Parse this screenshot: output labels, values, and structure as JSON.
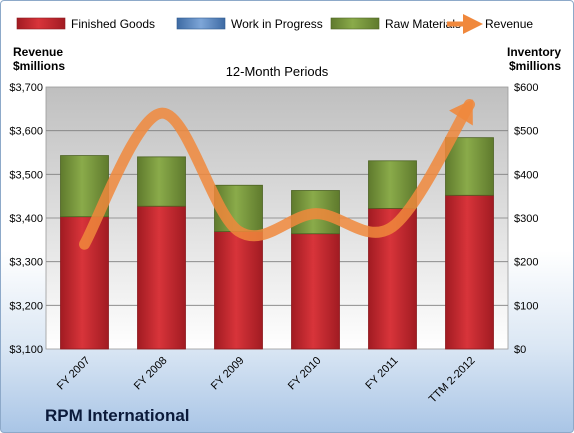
{
  "chart_data": {
    "type": "bar",
    "stacked": true,
    "title": "12-Month Periods",
    "company": "RPM International",
    "categories": [
      "FY 2007",
      "FY 2008",
      "FY 2009",
      "FY 2010",
      "FY 2011",
      "TTM 2-2012"
    ],
    "series": [
      {
        "name": "Finished Goods",
        "axis": "right",
        "color": "#c0262c",
        "values": [
          303,
          327,
          269,
          264,
          322,
          352
        ]
      },
      {
        "name": "Work in Progress",
        "axis": "right",
        "color": "#4f81bd",
        "values": [
          0,
          0,
          0,
          0,
          0,
          0
        ]
      },
      {
        "name": "Raw Materials",
        "axis": "right",
        "color": "#77933c",
        "values": [
          140,
          113,
          106,
          99,
          109,
          132
        ]
      },
      {
        "name": "Revenue",
        "axis": "left",
        "type": "line",
        "color": "#f0883c",
        "values": [
          3340,
          3640,
          3370,
          3410,
          3380,
          3660
        ]
      }
    ],
    "ylabel_left": "Revenue $millions",
    "ylabel_left_lines": [
      "Revenue",
      "$millions"
    ],
    "ylabel_right": "Inventory $millions",
    "ylabel_right_lines": [
      "Inventory",
      "$millions"
    ],
    "ylim_left": [
      3100,
      3700
    ],
    "ylim_right": [
      0,
      600
    ],
    "yticks_left": [
      "$3,100",
      "$3,200",
      "$3,300",
      "$3,400",
      "$3,500",
      "$3,600",
      "$3,700"
    ],
    "yticks_right": [
      "$0",
      "$100",
      "$200",
      "$300",
      "$400",
      "$500",
      "$600"
    ],
    "grid": true,
    "legend": "top"
  }
}
